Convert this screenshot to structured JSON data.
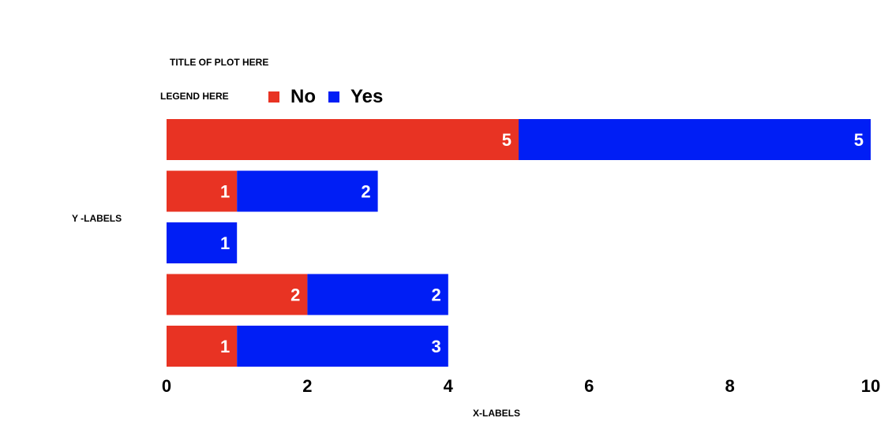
{
  "labels": {
    "title": "TITLE OF PLOT HERE",
    "legend_caption": "LEGEND HERE",
    "ylabel": "Y -LABELS",
    "xlabel": "X-LABELS"
  },
  "legend": [
    {
      "name": "No",
      "color": "#E83323"
    },
    {
      "name": "Yes",
      "color": "#001EF5"
    }
  ],
  "chart_data": {
    "type": "bar",
    "orientation": "horizontal",
    "stacked": true,
    "title": "TITLE OF PLOT HERE",
    "xlabel": "X-LABELS",
    "ylabel": "Y -LABELS",
    "xlim": [
      0,
      10
    ],
    "xticks": [
      0,
      2,
      4,
      6,
      8,
      10
    ],
    "grid": false,
    "legend_position": "top",
    "series": [
      {
        "name": "No",
        "color": "#E83323",
        "values": [
          5,
          1,
          0,
          2,
          1
        ]
      },
      {
        "name": "Yes",
        "color": "#001EF5",
        "values": [
          5,
          2,
          1,
          2,
          3
        ]
      }
    ]
  }
}
